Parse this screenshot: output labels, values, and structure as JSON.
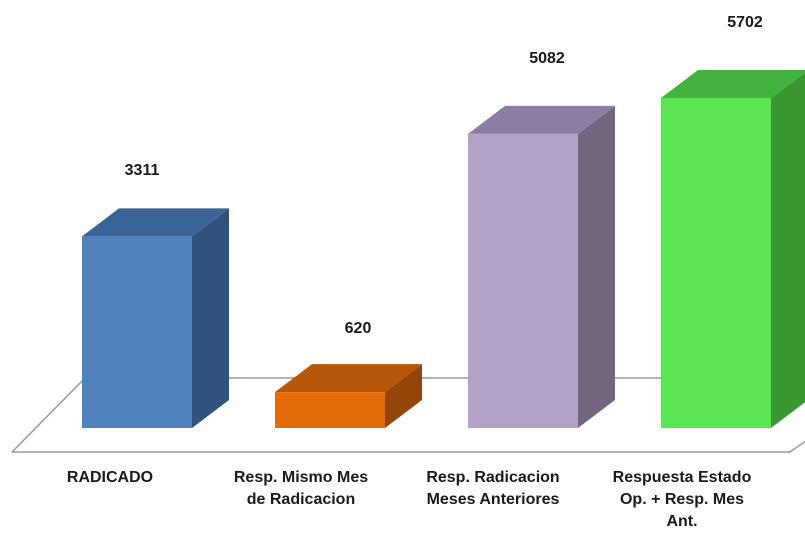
{
  "chart_data": {
    "type": "bar",
    "categories": [
      "RADICADO",
      "Resp. Mismo Mes de Radicacion",
      "Resp. Radicacion Meses Anteriores",
      "Respuesta Estado Op. + Resp. Mes Ant."
    ],
    "values": [
      3311,
      620,
      5082,
      5702
    ],
    "title": "",
    "xlabel": "",
    "ylabel": "",
    "ylim": [
      0,
      5702
    ],
    "grid": false,
    "legend": "none",
    "colors": [
      {
        "front": "#4f81bd",
        "top": "#3a6398",
        "side": "#30527e"
      },
      {
        "front": "#e46c0a",
        "top": "#b8560a",
        "side": "#964508"
      },
      {
        "front": "#b3a2c7",
        "top": "#8c7ea0",
        "side": "#73677f"
      },
      {
        "front": "#5ae352",
        "top": "#44b23e",
        "side": "#3a9833"
      }
    ]
  },
  "labels": {
    "values": [
      "3311",
      "620",
      "5082",
      "5702"
    ],
    "categories": [
      [
        "RADICADO"
      ],
      [
        "Resp. Mismo Mes",
        "de Radicacion"
      ],
      [
        "Resp. Radicacion",
        "Meses Anteriores"
      ],
      [
        "Respuesta Estado",
        "Op. + Resp. Mes",
        "Ant."
      ]
    ]
  }
}
